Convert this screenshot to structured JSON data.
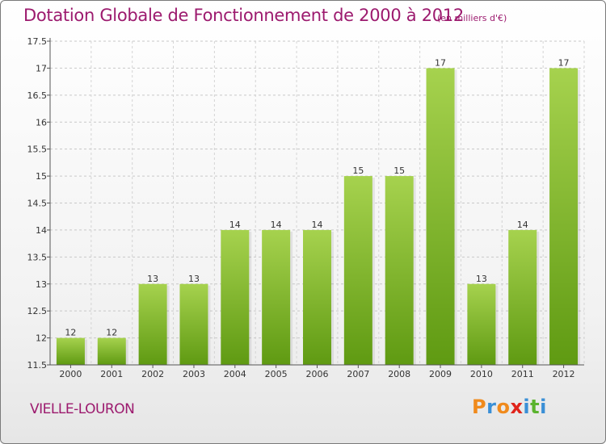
{
  "header": {
    "title": "Dotation Globale de Fonctionnement de 2000 à 2012",
    "unit": "(en milliers d'€)"
  },
  "footer": {
    "commune": "VIELLE-LOURON",
    "brand": "Proxiti"
  },
  "colors": {
    "accent": "#9c1a6e",
    "bar_light": "#a6d24e",
    "bar_dark": "#5f9a12",
    "brand_p": "#f08a1c",
    "brand_r": "#3a8fd6",
    "brand_o": "#f08a1c",
    "brand_x": "#e0241b",
    "brand_i": "#3a8fd6",
    "brand_t": "#5bb32e",
    "brand_i2": "#3a8fd6"
  },
  "chart_data": {
    "type": "bar",
    "categories": [
      "2000",
      "2001",
      "2002",
      "2003",
      "2004",
      "2005",
      "2006",
      "2007",
      "2008",
      "2009",
      "2010",
      "2011",
      "2012"
    ],
    "values": [
      12,
      12,
      13,
      13,
      14,
      14,
      14,
      15,
      15,
      17,
      13,
      14,
      17
    ],
    "data_labels": [
      "12",
      "12",
      "13",
      "13",
      "14",
      "14",
      "14",
      "15",
      "15",
      "17",
      "13",
      "14",
      "17"
    ],
    "ylim": [
      11.5,
      17.5
    ],
    "yticks": [
      11.5,
      12,
      12.5,
      13,
      13.5,
      14,
      14.5,
      15,
      15.5,
      16,
      16.5,
      17,
      17.5
    ],
    "ytick_labels": [
      "11.5",
      "12",
      "12.5",
      "13",
      "13.5",
      "14",
      "14.5",
      "15",
      "15.5",
      "16",
      "16.5",
      "17",
      "17.5"
    ],
    "grid": true,
    "legend": "none"
  }
}
